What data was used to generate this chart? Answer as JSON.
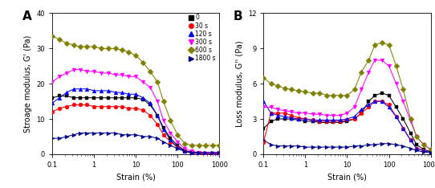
{
  "panel_A": {
    "title": "A",
    "ylabel": "Stroage modulus, G' (Pa)",
    "xlabel": "Strain (%)",
    "ylim": [
      0,
      40
    ],
    "yticks": [
      0,
      10,
      20,
      30,
      40
    ],
    "series": {
      "0s": {
        "color": "#000000",
        "marker": "s",
        "label": "0",
        "x": [
          0.1,
          0.15,
          0.22,
          0.33,
          0.46,
          0.68,
          1.0,
          1.5,
          2.2,
          3.3,
          4.6,
          6.8,
          10,
          15,
          22,
          33,
          46,
          68,
          100,
          150,
          220,
          330,
          460,
          680,
          1000
        ],
        "y": [
          16.0,
          16.5,
          16.5,
          16.0,
          16.0,
          16.0,
          16.0,
          16.0,
          16.0,
          16.0,
          16.0,
          16.0,
          16.0,
          15.5,
          14.0,
          11.0,
          7.5,
          4.5,
          2.5,
          1.0,
          0.5,
          0.3,
          0.2,
          0.2,
          0.2
        ]
      },
      "30s": {
        "color": "#ff0000",
        "marker": "o",
        "label": "30 s",
        "x": [
          0.1,
          0.15,
          0.22,
          0.33,
          0.46,
          0.68,
          1.0,
          1.5,
          2.2,
          3.3,
          4.6,
          6.8,
          10,
          15,
          22,
          33,
          46,
          68,
          100,
          150,
          220,
          330,
          460,
          680,
          1000
        ],
        "y": [
          12.0,
          13.0,
          13.5,
          14.0,
          14.0,
          14.0,
          13.5,
          13.5,
          13.5,
          13.5,
          13.5,
          13.0,
          13.0,
          12.5,
          11.0,
          8.5,
          5.5,
          3.5,
          2.0,
          0.8,
          0.3,
          0.2,
          0.2,
          0.2,
          0.2
        ]
      },
      "120s": {
        "color": "#0000ff",
        "marker": "^",
        "label": "120 s",
        "x": [
          0.1,
          0.15,
          0.22,
          0.33,
          0.46,
          0.68,
          1.0,
          1.5,
          2.2,
          3.3,
          4.6,
          6.8,
          10,
          15,
          22,
          33,
          46,
          68,
          100,
          150,
          220,
          330,
          460,
          680,
          1000
        ],
        "y": [
          14.5,
          16.0,
          17.5,
          18.5,
          18.5,
          18.5,
          18.0,
          18.0,
          18.0,
          17.5,
          17.5,
          17.0,
          17.0,
          16.0,
          14.5,
          11.0,
          7.0,
          4.0,
          2.0,
          0.8,
          0.3,
          0.2,
          0.2,
          0.2,
          0.2
        ]
      },
      "300s": {
        "color": "#ff00ff",
        "marker": "v",
        "label": "300 s",
        "x": [
          0.1,
          0.15,
          0.22,
          0.33,
          0.46,
          0.68,
          1.0,
          1.5,
          2.2,
          3.3,
          4.6,
          6.8,
          10,
          15,
          22,
          33,
          46,
          68,
          100,
          150,
          220,
          330,
          460,
          680,
          1000
        ],
        "y": [
          20.5,
          22.0,
          23.0,
          24.0,
          24.0,
          23.5,
          23.5,
          23.0,
          23.0,
          22.5,
          22.5,
          22.0,
          22.0,
          20.5,
          19.0,
          15.0,
          9.5,
          6.0,
          3.5,
          1.5,
          0.8,
          0.5,
          0.3,
          0.3,
          0.3
        ]
      },
      "600s": {
        "color": "#808000",
        "marker": "D",
        "label": "600 s",
        "x": [
          0.1,
          0.15,
          0.22,
          0.33,
          0.46,
          0.68,
          1.0,
          1.5,
          2.2,
          3.3,
          4.6,
          6.8,
          10,
          15,
          22,
          33,
          46,
          68,
          100,
          150,
          220,
          330,
          460,
          680,
          1000
        ],
        "y": [
          33.5,
          32.5,
          31.5,
          31.0,
          30.5,
          30.5,
          30.5,
          30.0,
          30.0,
          30.0,
          29.5,
          29.0,
          28.0,
          26.0,
          23.5,
          20.5,
          15.0,
          9.5,
          5.5,
          3.0,
          2.5,
          2.5,
          2.5,
          2.5,
          2.5
        ]
      },
      "1800s": {
        "color": "#00008b",
        "marker": ">",
        "label": "1800 s",
        "x": [
          0.1,
          0.15,
          0.22,
          0.33,
          0.46,
          0.68,
          1.0,
          1.5,
          2.2,
          3.3,
          4.6,
          6.8,
          10,
          15,
          22,
          33,
          46,
          68,
          100,
          150,
          220,
          330,
          460,
          680,
          1000
        ],
        "y": [
          4.5,
          4.5,
          5.0,
          5.5,
          6.0,
          6.0,
          6.0,
          6.0,
          6.0,
          6.0,
          5.5,
          5.5,
          5.5,
          5.0,
          5.0,
          4.5,
          3.5,
          2.5,
          1.5,
          0.8,
          0.5,
          0.5,
          0.5,
          0.5,
          0.5
        ]
      }
    }
  },
  "panel_B": {
    "title": "B",
    "ylabel": "Loss modulus, G'' (Pa)",
    "xlabel": "Strain (%)",
    "ylim": [
      0,
      12
    ],
    "yticks": [
      0,
      3,
      6,
      9,
      12
    ],
    "series": {
      "0s": {
        "color": "#000000",
        "marker": "s",
        "label": "0",
        "x": [
          0.1,
          0.15,
          0.22,
          0.33,
          0.46,
          0.68,
          1.0,
          1.5,
          2.2,
          3.3,
          4.6,
          6.8,
          10,
          15,
          22,
          33,
          46,
          68,
          100,
          150,
          220,
          330,
          460,
          680,
          1000
        ],
        "y": [
          2.2,
          2.8,
          3.0,
          3.0,
          3.0,
          2.9,
          2.8,
          2.8,
          2.7,
          2.7,
          2.7,
          2.7,
          2.8,
          3.0,
          3.5,
          4.5,
          5.0,
          5.2,
          5.0,
          4.0,
          3.0,
          1.8,
          0.8,
          0.4,
          0.2
        ]
      },
      "30s": {
        "color": "#ff0000",
        "marker": "o",
        "label": "30 s",
        "x": [
          0.1,
          0.15,
          0.22,
          0.33,
          0.46,
          0.68,
          1.0,
          1.5,
          2.2,
          3.3,
          4.6,
          6.8,
          10,
          15,
          22,
          33,
          46,
          68,
          100,
          150,
          220,
          330,
          460,
          680,
          1000
        ],
        "y": [
          1.0,
          3.5,
          3.5,
          3.5,
          3.3,
          3.1,
          3.0,
          2.9,
          2.8,
          2.8,
          2.8,
          2.8,
          2.9,
          3.0,
          3.5,
          4.0,
          4.5,
          4.5,
          4.2,
          3.2,
          2.2,
          1.2,
          0.5,
          0.3,
          0.2
        ]
      },
      "120s": {
        "color": "#0000ff",
        "marker": "^",
        "label": "120 s",
        "x": [
          0.1,
          0.15,
          0.22,
          0.33,
          0.46,
          0.68,
          1.0,
          1.5,
          2.2,
          3.3,
          4.6,
          6.8,
          10,
          15,
          22,
          33,
          46,
          68,
          100,
          150,
          220,
          330,
          460,
          680,
          1000
        ],
        "y": [
          4.5,
          3.5,
          3.3,
          3.2,
          3.1,
          3.0,
          3.0,
          2.9,
          2.9,
          2.9,
          2.9,
          2.9,
          3.0,
          3.2,
          3.8,
          4.2,
          4.5,
          4.5,
          4.0,
          3.2,
          2.2,
          1.2,
          0.5,
          0.3,
          0.2
        ]
      },
      "300s": {
        "color": "#ff00ff",
        "marker": "v",
        "label": "300 s",
        "x": [
          0.1,
          0.15,
          0.22,
          0.33,
          0.46,
          0.68,
          1.0,
          1.5,
          2.2,
          3.3,
          4.6,
          6.8,
          10,
          15,
          22,
          33,
          46,
          68,
          100,
          150,
          220,
          330,
          460,
          680,
          1000
        ],
        "y": [
          4.0,
          4.0,
          3.8,
          3.7,
          3.6,
          3.5,
          3.5,
          3.4,
          3.4,
          3.3,
          3.3,
          3.3,
          3.5,
          4.0,
          5.5,
          7.0,
          8.0,
          8.0,
          7.5,
          6.0,
          4.5,
          2.8,
          1.5,
          0.8,
          0.4
        ]
      },
      "600s": {
        "color": "#808000",
        "marker": "D",
        "label": "600 s",
        "x": [
          0.1,
          0.15,
          0.22,
          0.33,
          0.46,
          0.68,
          1.0,
          1.5,
          2.2,
          3.3,
          4.6,
          6.8,
          10,
          15,
          22,
          33,
          46,
          68,
          100,
          150,
          220,
          330,
          460,
          680,
          1000
        ],
        "y": [
          6.5,
          6.0,
          5.8,
          5.6,
          5.5,
          5.4,
          5.3,
          5.2,
          5.2,
          5.0,
          5.0,
          5.0,
          5.0,
          5.5,
          7.0,
          8.0,
          9.3,
          9.5,
          9.3,
          7.5,
          5.5,
          3.0,
          1.5,
          0.8,
          0.4
        ]
      },
      "1800s": {
        "color": "#00008b",
        "marker": ">",
        "label": "1800 s",
        "x": [
          0.1,
          0.15,
          0.22,
          0.33,
          0.46,
          0.68,
          1.0,
          1.5,
          2.2,
          3.3,
          4.6,
          6.8,
          10,
          15,
          22,
          33,
          46,
          68,
          100,
          150,
          220,
          330,
          460,
          680,
          1000
        ],
        "y": [
          1.2,
          0.8,
          0.7,
          0.7,
          0.7,
          0.7,
          0.6,
          0.6,
          0.6,
          0.6,
          0.6,
          0.6,
          0.6,
          0.7,
          0.7,
          0.8,
          0.8,
          0.9,
          0.9,
          0.8,
          0.7,
          0.5,
          0.3,
          0.2,
          0.1
        ]
      }
    }
  },
  "legend_order": [
    "0s",
    "30s",
    "120s",
    "300s",
    "600s",
    "1800s"
  ],
  "legend_labels": [
    "0",
    "30 s",
    "120 s",
    "300 s",
    "600 s",
    "1800 s"
  ]
}
